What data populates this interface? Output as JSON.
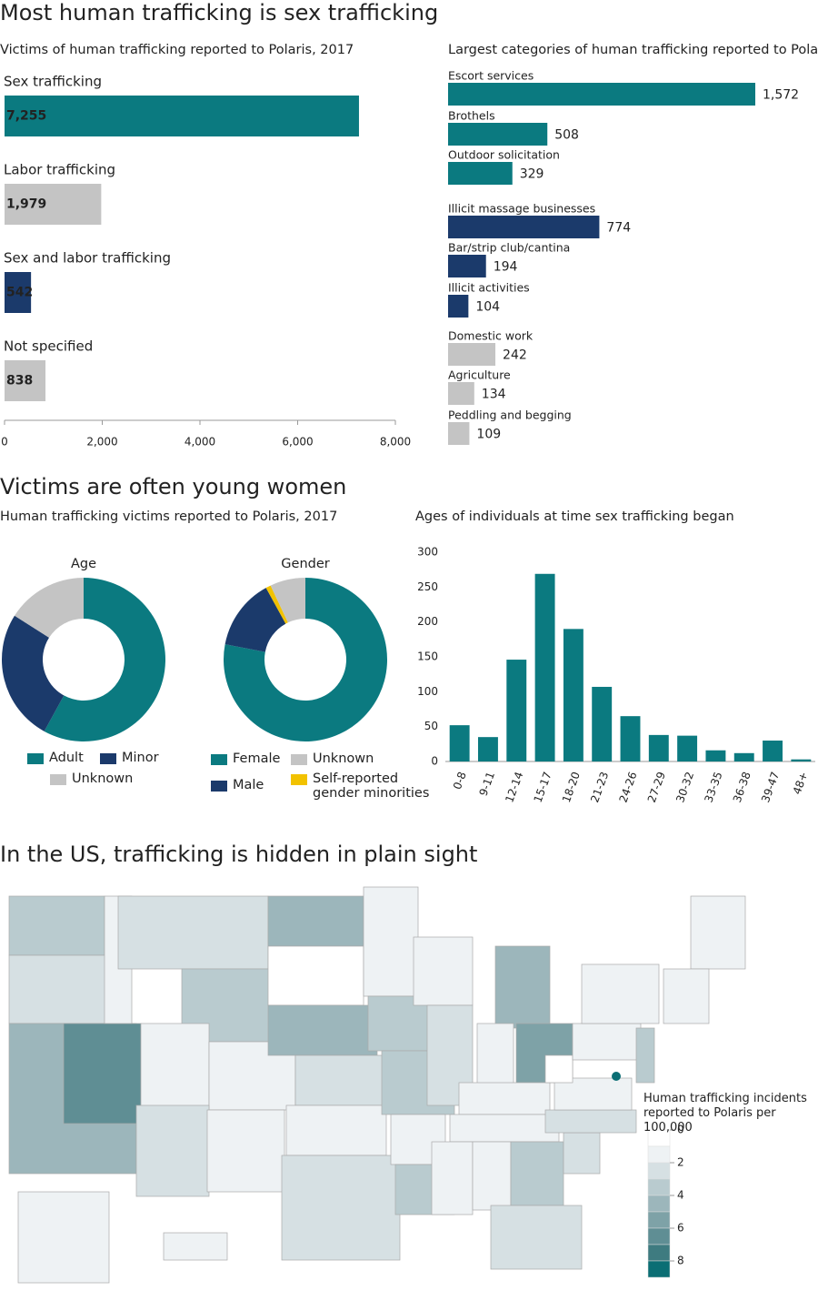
{
  "headings": [
    "Most human trafficking is sex trafficking",
    "Victims are often young women",
    "In the US, trafficking is hidden in plain sight"
  ],
  "chart_data": [
    {
      "type": "hbar",
      "title": "Victims of human trafficking reported to Polaris, 2017",
      "categories": [
        "Sex trafficking",
        "Labor trafficking",
        "Sex and labor trafficking",
        "Not specified"
      ],
      "values": [
        7255,
        1979,
        542,
        838
      ],
      "value_labels": [
        "7,255",
        "1,979",
        "542",
        "838"
      ],
      "colors": [
        "#0b7a80",
        "#c4c4c4",
        "#1b3a6b",
        "#c4c4c4"
      ],
      "xlim": [
        0,
        8000
      ],
      "xticks": [
        0,
        {
          "value": 2000,
          "label": "2,000"
        },
        {
          "value": 4000,
          "label": "4,000"
        },
        {
          "value": 6000,
          "label": "6,000"
        },
        {
          "value": 8000,
          "label": "8,000"
        }
      ]
    },
    {
      "type": "hbar",
      "title": "Largest categories of human trafficking reported to Polaris",
      "categories": [
        "Escort services",
        "Brothels",
        "Outdoor solicitation",
        "Illicit massage businesses",
        "Bar/strip club/cantina",
        "Illicit activities",
        "Domestic work",
        "Agriculture",
        "Peddling and begging"
      ],
      "values": [
        1572,
        508,
        329,
        774,
        194,
        104,
        242,
        134,
        109
      ],
      "value_labels": [
        "1,572",
        "508",
        "329",
        "774",
        "194",
        "104",
        "242",
        "134",
        "109"
      ],
      "colors": [
        "#0b7a80",
        "#0b7a80",
        "#0b7a80",
        "#1b3a6b",
        "#1b3a6b",
        "#1b3a6b",
        "#c4c4c4",
        "#c4c4c4",
        "#c4c4c4"
      ]
    },
    {
      "type": "donut",
      "subtitle": "Human trafficking victims reported to Polaris, 2017",
      "title": "Age",
      "categories": [
        "Adult",
        "Minor",
        "Unknown"
      ],
      "values": [
        58,
        26,
        16
      ],
      "colors": [
        "#0b7a80",
        "#1b3a6b",
        "#c4c4c4"
      ]
    },
    {
      "type": "donut",
      "title": "Gender",
      "categories": [
        "Female",
        "Male",
        "Self-reported gender minorities",
        "Unknown"
      ],
      "values": [
        78,
        14,
        1,
        7
      ],
      "colors": [
        "#0b7a80",
        "#1b3a6b",
        "#f2c200",
        "#c4c4c4"
      ]
    },
    {
      "type": "bar",
      "title": "Ages of individuals at time sex trafficking began",
      "categories": [
        "0-8",
        "9-11",
        "12-14",
        "15-17",
        "18-20",
        "21-23",
        "24-26",
        "27-29",
        "30-32",
        "33-35",
        "36-38",
        "39-47",
        "48+"
      ],
      "values": [
        52,
        35,
        146,
        269,
        190,
        107,
        65,
        38,
        37,
        16,
        12,
        30,
        3
      ],
      "color": "#0b7a80",
      "ylim": [
        0,
        300
      ],
      "yticks": [
        0,
        50,
        100,
        150,
        200,
        250,
        300
      ]
    },
    {
      "type": "map",
      "legend_title": "Human trafficking incidents reported to Polaris per 100,000",
      "values": [
        3,
        2,
        4,
        6,
        1,
        2,
        3,
        1,
        1,
        2,
        1,
        4,
        0,
        4,
        2,
        1,
        2,
        1,
        3,
        3,
        1,
        3,
        1,
        2,
        4,
        1,
        5,
        1,
        1,
        1,
        1,
        3,
        2,
        2,
        2,
        1,
        0,
        1,
        1,
        1,
        1,
        3,
        1,
        1,
        8
      ],
      "scale": {
        "lim": [
          0,
          9
        ],
        "ticks": [
          0,
          2,
          4,
          6,
          8
        ],
        "colors": [
          "#ffffff",
          "#eef2f4",
          "#d6e0e3",
          "#b9cbcf",
          "#9cb6bb",
          "#7ea2a7",
          "#5f8e94",
          "#3e7b80",
          "#0b6e74"
        ]
      }
    }
  ]
}
